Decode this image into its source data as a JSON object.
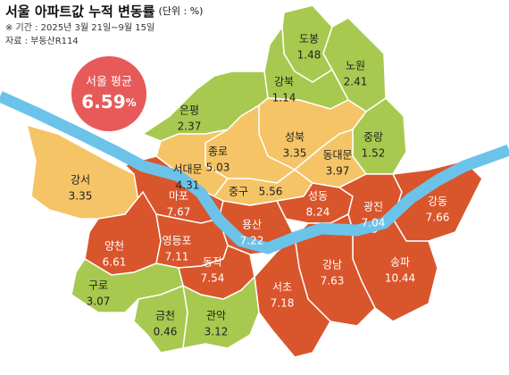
{
  "title": "서울 아파트값 누적 변동률",
  "unit": "(단위 : %)",
  "period": "※ 기간 : 2025년 3월 21일~9월 15일",
  "source": "자료 : 부동산R114",
  "average": {
    "label": "서울 평균",
    "value": 6.59,
    "unit": "%",
    "color": "#e85a5a"
  },
  "river_color": "#6cc3ea",
  "districts": [
    {
      "name": "도봉",
      "value": 1.48,
      "color": "#a8c94f"
    },
    {
      "name": "노원",
      "value": 2.41,
      "color": "#a8c94f"
    },
    {
      "name": "강북",
      "value": 1.14,
      "color": "#a8c94f"
    },
    {
      "name": "은평",
      "value": 2.37,
      "color": "#a8c94f"
    },
    {
      "name": "성북",
      "value": 3.35,
      "color": "#f5c466"
    },
    {
      "name": "중랑",
      "value": 1.52,
      "color": "#a8c94f"
    },
    {
      "name": "종로",
      "value": 5.03,
      "color": "#f5c466"
    },
    {
      "name": "서대문",
      "value": 4.31,
      "color": "#f5c466"
    },
    {
      "name": "동대문",
      "value": 3.97,
      "color": "#f5c466"
    },
    {
      "name": "강서",
      "value": 3.35,
      "color": "#f5c466"
    },
    {
      "name": "마포",
      "value": 7.67,
      "color": "#d9552c"
    },
    {
      "name": "중구",
      "value": 5.56,
      "color": "#f5c466"
    },
    {
      "name": "성동",
      "value": 8.24,
      "color": "#d9552c"
    },
    {
      "name": "광진",
      "value": 7.04,
      "color": "#d9552c"
    },
    {
      "name": "강동",
      "value": 7.66,
      "color": "#d9552c"
    },
    {
      "name": "용산",
      "value": 7.22,
      "color": "#d9552c"
    },
    {
      "name": "양천",
      "value": 6.61,
      "color": "#d9552c"
    },
    {
      "name": "영등포",
      "value": 7.11,
      "color": "#d9552c"
    },
    {
      "name": "동작",
      "value": 7.54,
      "color": "#d9552c"
    },
    {
      "name": "송파",
      "value": 10.44,
      "color": "#d9552c"
    },
    {
      "name": "강남",
      "value": 7.63,
      "color": "#d9552c"
    },
    {
      "name": "서초",
      "value": 7.18,
      "color": "#d9552c"
    },
    {
      "name": "구로",
      "value": 3.07,
      "color": "#a8c94f"
    },
    {
      "name": "금천",
      "value": 0.46,
      "color": "#a8c94f"
    },
    {
      "name": "관악",
      "value": 3.12,
      "color": "#a8c94f"
    }
  ]
}
